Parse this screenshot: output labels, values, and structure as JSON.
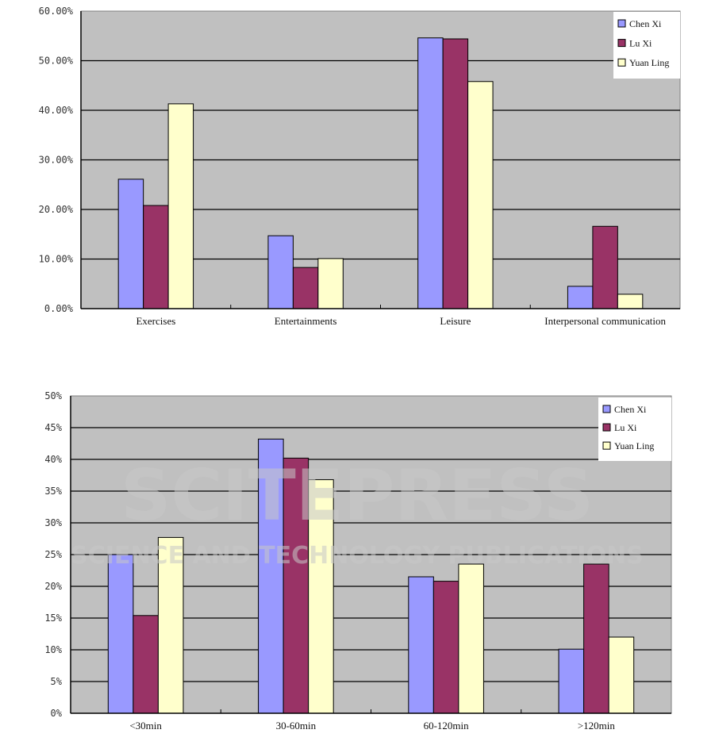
{
  "watermark": {
    "line1": "SCITEPRESS",
    "line2": "SCIENCE AND TECHNOLOGY PUBLICATIONS"
  },
  "colors": {
    "plot_bg": "#c0c0c0",
    "series": [
      "#9999ff",
      "#993366",
      "#ffffcc"
    ]
  },
  "chart_data": [
    {
      "type": "bar",
      "title": "",
      "xlabel": "",
      "ylabel": "",
      "ylim": [
        0,
        60
      ],
      "yticks": [
        0,
        10,
        20,
        30,
        40,
        50,
        60
      ],
      "ytick_labels": [
        "0.00%",
        "10.00%",
        "20.00%",
        "30.00%",
        "40.00%",
        "50.00%",
        "60.00%"
      ],
      "grid": true,
      "legend": "top-right",
      "categories": [
        "Exercises",
        "Entertainments",
        "Leisure",
        "Interpersonal communication"
      ],
      "series": [
        {
          "name": "Chen Xi",
          "values": [
            26.1,
            14.7,
            54.6,
            4.5
          ]
        },
        {
          "name": "Lu Xi",
          "values": [
            20.8,
            8.3,
            54.4,
            16.6
          ]
        },
        {
          "name": "Yuan Ling",
          "values": [
            41.3,
            10.1,
            45.8,
            2.9
          ]
        }
      ]
    },
    {
      "type": "bar",
      "title": "",
      "xlabel": "",
      "ylabel": "",
      "ylim": [
        0,
        50
      ],
      "yticks": [
        0,
        5,
        10,
        15,
        20,
        25,
        30,
        35,
        40,
        45,
        50
      ],
      "ytick_labels": [
        "0%",
        "5%",
        "10%",
        "15%",
        "20%",
        "25%",
        "30%",
        "35%",
        "40%",
        "45%",
        "50%"
      ],
      "grid": true,
      "legend": "top-right",
      "categories": [
        "<30min",
        "30-60min",
        "60-120min",
        ">120min"
      ],
      "series": [
        {
          "name": "Chen Xi",
          "values": [
            25.0,
            43.2,
            21.5,
            10.1
          ]
        },
        {
          "name": "Lu Xi",
          "values": [
            15.4,
            40.2,
            20.8,
            23.5
          ]
        },
        {
          "name": "Yuan Ling",
          "values": [
            27.7,
            36.8,
            23.5,
            12.0
          ]
        }
      ]
    }
  ]
}
